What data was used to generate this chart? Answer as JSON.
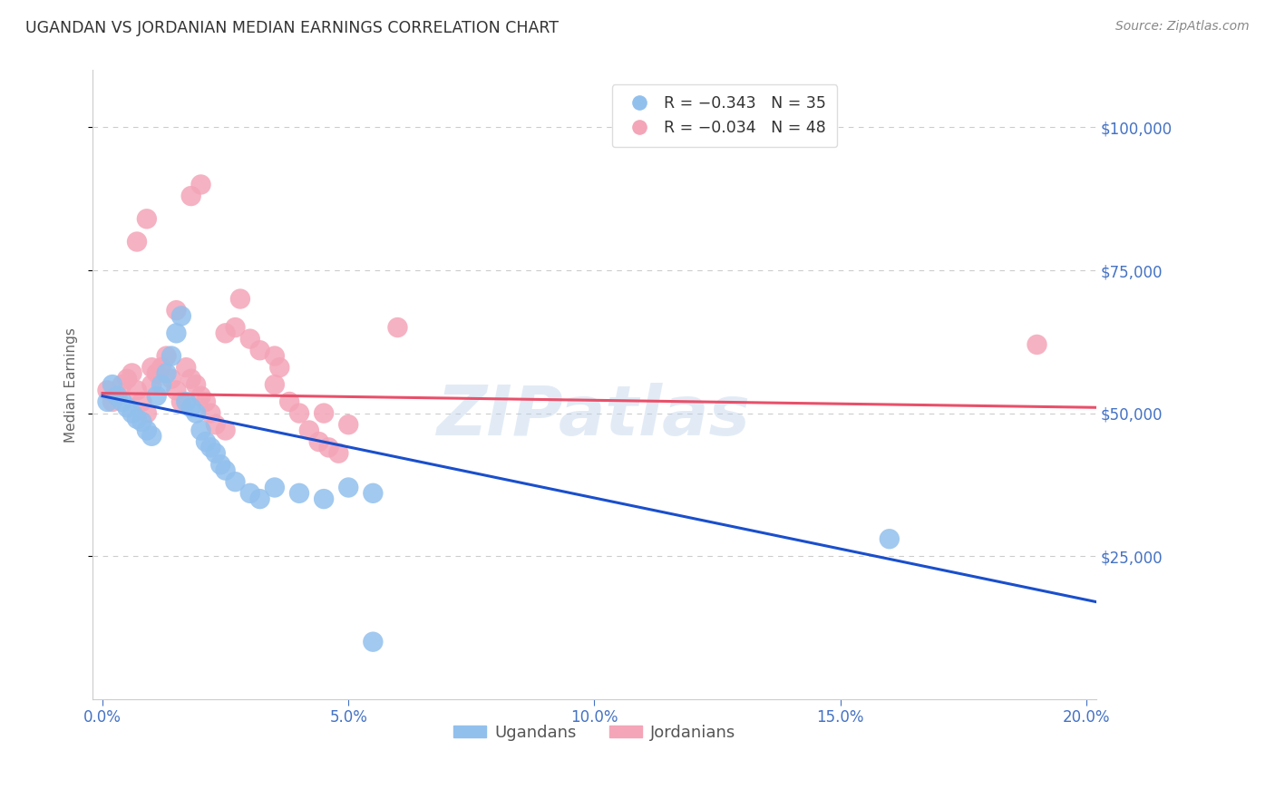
{
  "title": "UGANDAN VS JORDANIAN MEDIAN EARNINGS CORRELATION CHART",
  "source": "Source: ZipAtlas.com",
  "ylabel": "Median Earnings",
  "xlabel_ticks": [
    "0.0%",
    "5.0%",
    "10.0%",
    "15.0%",
    "20.0%"
  ],
  "xlabel_vals": [
    0.0,
    0.05,
    0.1,
    0.15,
    0.2
  ],
  "ytick_labels": [
    "$25,000",
    "$50,000",
    "$75,000",
    "$100,000"
  ],
  "ytick_vals": [
    25000,
    50000,
    75000,
    100000
  ],
  "ylim": [
    0,
    110000
  ],
  "xlim": [
    -0.002,
    0.202
  ],
  "watermark": "ZIPatlas",
  "legend_blue_r": "R = -0.343",
  "legend_blue_n": "N = 35",
  "legend_pink_r": "R = -0.034",
  "legend_pink_n": "N = 48",
  "ugandan_color": "#92c0ed",
  "jordanian_color": "#f4a5b8",
  "line_blue": "#1a4fcc",
  "line_pink": "#e8506a",
  "ugandan_points": [
    [
      0.001,
      52000
    ],
    [
      0.002,
      55000
    ],
    [
      0.003,
      53000
    ],
    [
      0.004,
      52000
    ],
    [
      0.005,
      51000
    ],
    [
      0.006,
      50000
    ],
    [
      0.007,
      49000
    ],
    [
      0.008,
      48500
    ],
    [
      0.009,
      47000
    ],
    [
      0.01,
      46000
    ],
    [
      0.011,
      53000
    ],
    [
      0.012,
      55000
    ],
    [
      0.013,
      57000
    ],
    [
      0.014,
      60000
    ],
    [
      0.015,
      64000
    ],
    [
      0.016,
      67000
    ],
    [
      0.017,
      52000
    ],
    [
      0.018,
      51000
    ],
    [
      0.019,
      50000
    ],
    [
      0.02,
      47000
    ],
    [
      0.021,
      45000
    ],
    [
      0.022,
      44000
    ],
    [
      0.023,
      43000
    ],
    [
      0.024,
      41000
    ],
    [
      0.025,
      40000
    ],
    [
      0.027,
      38000
    ],
    [
      0.03,
      36000
    ],
    [
      0.032,
      35000
    ],
    [
      0.035,
      37000
    ],
    [
      0.04,
      36000
    ],
    [
      0.045,
      35000
    ],
    [
      0.05,
      37000
    ],
    [
      0.055,
      36000
    ],
    [
      0.16,
      28000
    ],
    [
      0.055,
      10000
    ]
  ],
  "jordanian_points": [
    [
      0.001,
      54000
    ],
    [
      0.002,
      52000
    ],
    [
      0.003,
      53000
    ],
    [
      0.004,
      55000
    ],
    [
      0.005,
      56000
    ],
    [
      0.006,
      57000
    ],
    [
      0.007,
      54000
    ],
    [
      0.008,
      52000
    ],
    [
      0.009,
      50000
    ],
    [
      0.01,
      55000
    ],
    [
      0.011,
      57000
    ],
    [
      0.012,
      58000
    ],
    [
      0.013,
      60000
    ],
    [
      0.014,
      56000
    ],
    [
      0.015,
      54000
    ],
    [
      0.016,
      52000
    ],
    [
      0.017,
      58000
    ],
    [
      0.018,
      56000
    ],
    [
      0.019,
      55000
    ],
    [
      0.02,
      53000
    ],
    [
      0.021,
      52000
    ],
    [
      0.022,
      50000
    ],
    [
      0.023,
      48000
    ],
    [
      0.025,
      47000
    ],
    [
      0.027,
      65000
    ],
    [
      0.028,
      70000
    ],
    [
      0.03,
      63000
    ],
    [
      0.032,
      61000
    ],
    [
      0.035,
      60000
    ],
    [
      0.036,
      58000
    ],
    [
      0.038,
      52000
    ],
    [
      0.04,
      50000
    ],
    [
      0.042,
      47000
    ],
    [
      0.044,
      45000
    ],
    [
      0.046,
      44000
    ],
    [
      0.048,
      43000
    ],
    [
      0.05,
      48000
    ],
    [
      0.06,
      65000
    ],
    [
      0.018,
      88000
    ],
    [
      0.02,
      90000
    ],
    [
      0.009,
      84000
    ],
    [
      0.007,
      80000
    ],
    [
      0.045,
      50000
    ],
    [
      0.035,
      55000
    ],
    [
      0.025,
      64000
    ],
    [
      0.015,
      68000
    ],
    [
      0.01,
      58000
    ],
    [
      0.19,
      62000
    ]
  ],
  "blue_line_x": [
    0.0,
    0.202
  ],
  "blue_line_y": [
    53000,
    17000
  ],
  "pink_line_x": [
    0.0,
    0.202
  ],
  "pink_line_y": [
    53500,
    51000
  ],
  "background_color": "#ffffff",
  "grid_color": "#cccccc",
  "title_color": "#333333",
  "axis_label_color": "#666666",
  "tick_label_color": "#4472c4",
  "source_color": "#888888"
}
